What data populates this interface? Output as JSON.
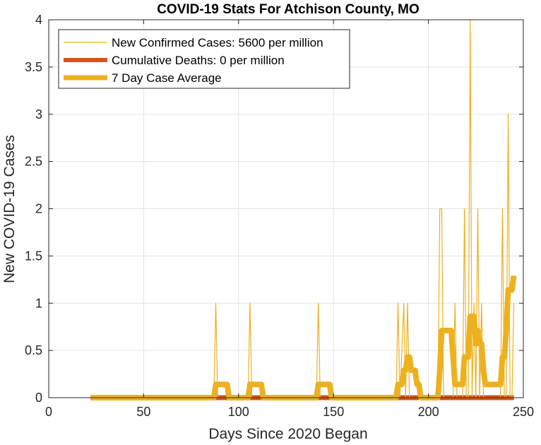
{
  "chart_data": {
    "type": "line",
    "title": "COVID-19 Stats For Atchison County, MO",
    "xlabel": "Days Since 2020 Began",
    "ylabel": "New COVID-19 Cases",
    "xlim": [
      0,
      250
    ],
    "ylim": [
      0,
      4
    ],
    "x_ticks": [
      0,
      50,
      100,
      150,
      200,
      250
    ],
    "y_ticks": [
      0,
      0.5,
      1,
      1.5,
      2,
      2.5,
      3,
      3.5,
      4
    ],
    "x_tick_labels": [
      "0",
      "50",
      "100",
      "150",
      "200",
      "250"
    ],
    "y_tick_labels": [
      "0",
      "0.5",
      "1",
      "1.5",
      "2",
      "2.5",
      "3",
      "3.5",
      "4"
    ],
    "grid": true,
    "legend_position": "top-left",
    "series": [
      {
        "name": "New Confirmed Cases: 5600 per million",
        "color": "#EDB120",
        "line": "thin",
        "points": [
          [
            22,
            0
          ],
          [
            87,
            0
          ],
          [
            88,
            1
          ],
          [
            89,
            0
          ],
          [
            105,
            0
          ],
          [
            106,
            1
          ],
          [
            107,
            0
          ],
          [
            141,
            0
          ],
          [
            142,
            1
          ],
          [
            143,
            0
          ],
          [
            183,
            0
          ],
          [
            184,
            1
          ],
          [
            185,
            0
          ],
          [
            187,
            1
          ],
          [
            188,
            0
          ],
          [
            189,
            1
          ],
          [
            190,
            0
          ],
          [
            205,
            0
          ],
          [
            206,
            2
          ],
          [
            207,
            2
          ],
          [
            208,
            0
          ],
          [
            213,
            0
          ],
          [
            214,
            1
          ],
          [
            215,
            0
          ],
          [
            218,
            0
          ],
          [
            219,
            2
          ],
          [
            220,
            0
          ],
          [
            221,
            0
          ],
          [
            222,
            4
          ],
          [
            223,
            0
          ],
          [
            224,
            1
          ],
          [
            225,
            0
          ],
          [
            226,
            2
          ],
          [
            227,
            0
          ],
          [
            228,
            1
          ],
          [
            229,
            0
          ],
          [
            238,
            0
          ],
          [
            239,
            2
          ],
          [
            240,
            0
          ],
          [
            241,
            0
          ],
          [
            242,
            3
          ],
          [
            243,
            0
          ],
          [
            244,
            0
          ],
          [
            245,
            1
          ]
        ]
      },
      {
        "name": "Cumulative Deaths: 0 per million",
        "color": "#D95319",
        "line": "thick",
        "points": [
          [
            22,
            0
          ],
          [
            245,
            0
          ]
        ]
      },
      {
        "name": "7 Day Case Average",
        "color": "#EDB120",
        "line": "thicker",
        "points": [
          [
            22,
            0
          ],
          [
            87,
            0
          ],
          [
            88,
            0.14
          ],
          [
            94,
            0.14
          ],
          [
            95,
            0
          ],
          [
            105,
            0
          ],
          [
            106,
            0.14
          ],
          [
            112,
            0.14
          ],
          [
            113,
            0
          ],
          [
            141,
            0
          ],
          [
            142,
            0.14
          ],
          [
            148,
            0.14
          ],
          [
            149,
            0
          ],
          [
            183,
            0
          ],
          [
            184,
            0.14
          ],
          [
            186,
            0.14
          ],
          [
            187,
            0.29
          ],
          [
            188,
            0.29
          ],
          [
            189,
            0.43
          ],
          [
            190,
            0.43
          ],
          [
            191,
            0.29
          ],
          [
            193,
            0.29
          ],
          [
            194,
            0.14
          ],
          [
            195,
            0.14
          ],
          [
            196,
            0
          ],
          [
            205,
            0
          ],
          [
            206,
            0.29
          ],
          [
            207,
            0.71
          ],
          [
            212,
            0.71
          ],
          [
            213,
            0.43
          ],
          [
            214,
            0.14
          ],
          [
            215,
            0.14
          ],
          [
            218,
            0.14
          ],
          [
            219,
            0.43
          ],
          [
            220,
            0.43
          ],
          [
            221,
            0.43
          ],
          [
            222,
            0.86
          ],
          [
            224,
            0.86
          ],
          [
            225,
            0.57
          ],
          [
            226,
            0.71
          ],
          [
            227,
            0.57
          ],
          [
            228,
            0.57
          ],
          [
            229,
            0.29
          ],
          [
            230,
            0.14
          ],
          [
            238,
            0.14
          ],
          [
            239,
            0.43
          ],
          [
            240,
            0.43
          ],
          [
            241,
            0.71
          ],
          [
            242,
            1.14
          ],
          [
            243,
            1.14
          ],
          [
            244,
            1.14
          ],
          [
            245,
            1.29
          ]
        ]
      }
    ]
  }
}
